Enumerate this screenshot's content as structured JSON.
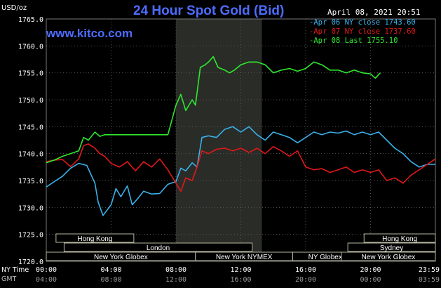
{
  "header": {
    "title": "24 Hour Spot Gold (Bid)",
    "date": "April 08, 2021 20:51",
    "unit": "USD/oz",
    "site": "www.kitco.com"
  },
  "footer": {
    "ny_time_label": "NY Time",
    "gmt_label": "GMT"
  },
  "colors": {
    "background": "#000000",
    "title": "#4d6cff",
    "apr06": "#3ab0ea",
    "apr07": "#e01818",
    "apr08": "#2ee82e",
    "grid": "#5a5a5a",
    "highlight": "#2a2c28"
  },
  "chart_data": {
    "type": "line",
    "title": "24 Hour Spot Gold (Bid)",
    "ylabel": "USD/oz",
    "ylim": [
      1720,
      1765
    ],
    "yticks": [
      "1765.0",
      "1760.0",
      "1755.0",
      "1750.0",
      "1745.0",
      "1740.0",
      "1735.0",
      "1730.0",
      "1725.0",
      "1720.0"
    ],
    "xlim": [
      0,
      24
    ],
    "xticks_ny": [
      "00:00",
      "04:00",
      "08:00",
      "12:00",
      "16:00",
      "20:00",
      "23:59"
    ],
    "xticks_gmt": [
      "04:00",
      "08:00",
      "12:00",
      "16:00",
      "20:00",
      "00:00",
      "03:59"
    ],
    "xticks_hours": [
      0,
      4,
      8,
      12,
      16,
      20,
      24
    ],
    "highlight_range_hours": [
      8,
      13.3
    ],
    "grid": true,
    "legend_position": "top-right",
    "series": [
      {
        "name": "Apr 06 NY close 1743.60",
        "color": "#3ab0ea",
        "x": [
          0,
          0.5,
          1,
          1.5,
          2,
          2.5,
          3,
          3.2,
          3.5,
          4,
          4.3,
          4.6,
          5,
          5.3,
          5.6,
          6,
          6.5,
          7,
          7.5,
          8,
          8.3,
          8.6,
          9,
          9.3,
          9.6,
          10,
          10.5,
          11,
          11.5,
          12,
          12.5,
          13,
          13.5,
          14,
          14.5,
          15,
          15.5,
          16,
          16.5,
          17,
          17.5,
          18,
          18.5,
          19,
          19.5,
          20,
          20.5,
          21,
          21.5,
          22,
          22.5,
          23,
          23.5,
          24
        ],
        "y": [
          1733.8,
          1734.8,
          1735.8,
          1737.3,
          1738.2,
          1737.8,
          1734.5,
          1731,
          1728.5,
          1730.5,
          1733.5,
          1732,
          1734,
          1730.5,
          1731.5,
          1733,
          1732.5,
          1732.6,
          1734.3,
          1734.8,
          1737.3,
          1736.8,
          1738.3,
          1737.5,
          1743,
          1743.3,
          1743,
          1744.5,
          1745,
          1744,
          1745,
          1743.5,
          1742.5,
          1744,
          1743.5,
          1743,
          1742,
          1743,
          1744,
          1743.5,
          1744,
          1743.8,
          1744.2,
          1743.5,
          1744,
          1743.5,
          1744,
          1742.5,
          1741,
          1740,
          1738.5,
          1737.5,
          1738,
          1738
        ]
      },
      {
        "name": "Apr 07 NY close 1737.60",
        "color": "#e01818",
        "x": [
          0,
          0.5,
          1,
          1.5,
          2,
          2.3,
          2.6,
          3,
          3.3,
          3.6,
          4,
          4.5,
          5,
          5.5,
          6,
          6.5,
          7,
          7.5,
          8,
          8.3,
          8.6,
          9,
          9.3,
          9.6,
          10,
          10.5,
          11,
          11.5,
          12,
          12.5,
          13,
          13.5,
          14,
          14.5,
          15,
          15.5,
          16,
          16.5,
          17,
          17.5,
          18,
          18.5,
          19,
          19.5,
          20,
          20.5,
          21,
          21.5,
          22,
          22.5,
          23,
          23.5,
          24
        ],
        "y": [
          1738.5,
          1738.8,
          1738.9,
          1737.6,
          1739,
          1741.5,
          1741.8,
          1741,
          1740,
          1739.5,
          1738.2,
          1737.5,
          1738.5,
          1736.8,
          1738.5,
          1737.5,
          1739,
          1737,
          1734.5,
          1733,
          1735.5,
          1735,
          1737.5,
          1740.5,
          1740,
          1740.8,
          1741,
          1740.5,
          1741,
          1740.2,
          1741,
          1740,
          1741.3,
          1740.5,
          1739.5,
          1740.5,
          1737.5,
          1737,
          1737.2,
          1736.5,
          1737,
          1737.5,
          1736.5,
          1737,
          1736.5,
          1737,
          1735,
          1735.5,
          1734.5,
          1736,
          1737,
          1738,
          1739
        ]
      },
      {
        "name": "Apr 08 Last 1755.10",
        "color": "#2ee82e",
        "x": [
          0,
          0.5,
          1,
          1.5,
          2,
          2.3,
          2.6,
          3,
          3.3,
          3.6,
          4,
          4.5,
          5,
          5.5,
          6,
          6.5,
          7,
          7.5,
          8,
          8.3,
          8.6,
          9,
          9.2,
          9.5,
          9.8,
          10,
          10.3,
          10.6,
          11,
          11.3,
          11.6,
          12,
          12.5,
          13,
          13.5,
          14,
          14.5,
          15,
          15.5,
          16,
          16.5,
          17,
          17.5,
          18,
          18.5,
          19,
          19.5,
          20,
          20.3,
          20.6
        ],
        "y": [
          1738.3,
          1738.8,
          1739.5,
          1740,
          1740.5,
          1743,
          1742.5,
          1744,
          1743.2,
          1743.5,
          1743.5,
          1743.5,
          1743.5,
          1743.5,
          1743.5,
          1743.5,
          1743.5,
          1743.5,
          1749,
          1751,
          1748,
          1750,
          1749,
          1756,
          1756.5,
          1757,
          1758,
          1756,
          1755.5,
          1755,
          1755.5,
          1756.5,
          1757,
          1757,
          1756.5,
          1755,
          1755.5,
          1755.8,
          1755.3,
          1755.8,
          1757,
          1756.5,
          1755.5,
          1755.5,
          1755,
          1755.5,
          1755,
          1754.8,
          1754,
          1755
        ]
      }
    ],
    "sessions": [
      {
        "label": "Hong Kong",
        "start": 0.6,
        "end": 5.4,
        "row": 0
      },
      {
        "label": "London",
        "start": 1.1,
        "end": 12.7,
        "row": 1
      },
      {
        "label": "New York Globex",
        "start": 0,
        "end": 9.2,
        "row": 2
      },
      {
        "label": "New York NYMEX",
        "start": 9.2,
        "end": 15.2,
        "row": 2
      },
      {
        "label": "NY Globex",
        "start": 15.2,
        "end": 19.2,
        "row": 2
      },
      {
        "label": "Hong Kong",
        "start": 19.6,
        "end": 24,
        "row": 0
      },
      {
        "label": "Sydney",
        "start": 18.6,
        "end": 24,
        "row": 1
      },
      {
        "label": "New York Globex",
        "start": 18.2,
        "end": 24,
        "row": 2
      }
    ]
  }
}
